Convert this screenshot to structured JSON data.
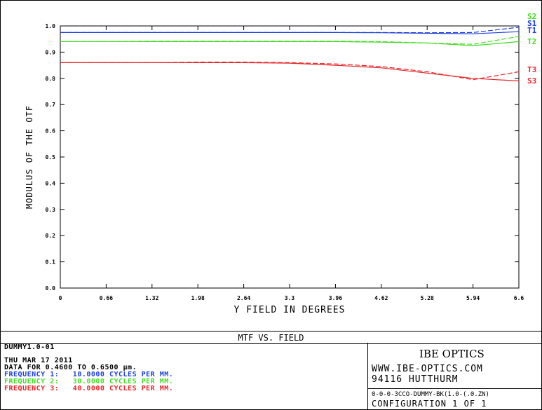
{
  "chart_data": {
    "type": "line",
    "xlabel": "Y FIELD IN DEGREES",
    "ylabel": "MODULUS OF THE OTF",
    "xlim": [
      0,
      6.6
    ],
    "ylim": [
      0,
      1.0
    ],
    "x_ticks": [
      "0",
      "0.66",
      "1.32",
      "1.98",
      "2.64",
      "3.3",
      "3.96",
      "4.62",
      "5.28",
      "5.94",
      "6.6"
    ],
    "y_ticks": [
      "0.0",
      "0.1",
      "0.2",
      "0.3",
      "0.4",
      "0.5",
      "0.6",
      "0.7",
      "0.8",
      "0.9",
      "1.0"
    ],
    "x": [
      0,
      0.66,
      1.32,
      1.98,
      2.64,
      3.3,
      3.96,
      4.62,
      5.28,
      5.94,
      6.6
    ],
    "series": [
      {
        "name": "T1",
        "label": "T1",
        "color": "#1e3fd8",
        "dash": false,
        "values": [
          0.975,
          0.975,
          0.975,
          0.975,
          0.975,
          0.975,
          0.975,
          0.974,
          0.972,
          0.97,
          0.978
        ]
      },
      {
        "name": "S1",
        "label": "S1",
        "color": "#1e3fd8",
        "dash": true,
        "values": [
          0.975,
          0.975,
          0.975,
          0.975,
          0.975,
          0.975,
          0.975,
          0.975,
          0.974,
          0.975,
          0.995
        ]
      },
      {
        "name": "T2",
        "label": "T2",
        "color": "#44dd22",
        "dash": false,
        "values": [
          0.94,
          0.94,
          0.94,
          0.94,
          0.94,
          0.94,
          0.94,
          0.938,
          0.935,
          0.925,
          0.94
        ]
      },
      {
        "name": "S2",
        "label": "S2",
        "color": "#44dd22",
        "dash": true,
        "values": [
          0.94,
          0.94,
          0.942,
          0.942,
          0.942,
          0.942,
          0.942,
          0.94,
          0.935,
          0.93,
          0.96
        ]
      },
      {
        "name": "T3",
        "label": "T3",
        "color": "#e8262b",
        "dash": false,
        "values": [
          0.86,
          0.86,
          0.86,
          0.86,
          0.86,
          0.858,
          0.85,
          0.84,
          0.82,
          0.8,
          0.79
        ]
      },
      {
        "name": "S3",
        "label": "S3",
        "color": "#e8262b",
        "dash": true,
        "values": [
          0.86,
          0.86,
          0.86,
          0.862,
          0.862,
          0.86,
          0.855,
          0.845,
          0.825,
          0.795,
          0.825
        ]
      }
    ],
    "title": "MTF VS. FIELD"
  },
  "info": {
    "filename": "DUMMY1.0-01",
    "date": "THU MAR 17 2011",
    "data_for": "DATA FOR 0.4600 TO 0.6500 µm.",
    "freq1": "FREQUENCY 1:   10.0000 CYCLES PER MM.",
    "freq2": "FREQUENCY 2:   30.0000 CYCLES PER MM.",
    "freq3": "FREQUENCY 3:   40.0000 CYCLES PER MM.",
    "freq1_color": "#1e3fd8",
    "freq2_color": "#44dd22",
    "freq3_color": "#e8262b"
  },
  "right_panel": {
    "company": "IBE OPTICS",
    "website": "WWW.IBE-OPTICS.COM",
    "address": "94116 HUTTHURM",
    "lens_file": "0-0-0-3CCO-DUMMY-BK(1.0-(.0.ZN)",
    "configuration": "CONFIGURATION 1 OF 1"
  }
}
